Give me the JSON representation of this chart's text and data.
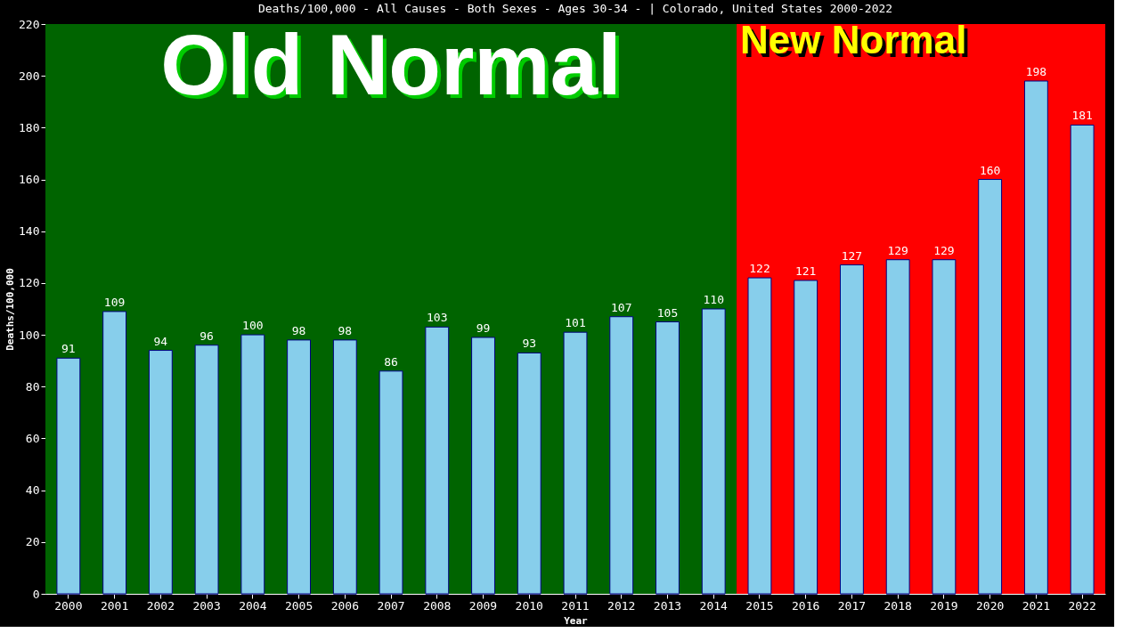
{
  "chart_data": {
    "type": "bar",
    "title": "Deaths/100,000 - All Causes - Both Sexes - Ages 30-34 -  | Colorado, United States 2000-2022",
    "xlabel": "Year",
    "ylabel": "Deaths/100,000",
    "categories": [
      "2000",
      "2001",
      "2002",
      "2003",
      "2004",
      "2005",
      "2006",
      "2007",
      "2008",
      "2009",
      "2010",
      "2011",
      "2012",
      "2013",
      "2014",
      "2015",
      "2016",
      "2017",
      "2018",
      "2019",
      "2020",
      "2021",
      "2022"
    ],
    "values": [
      91,
      109,
      94,
      96,
      100,
      98,
      98,
      86,
      103,
      99,
      93,
      101,
      107,
      105,
      110,
      122,
      121,
      127,
      129,
      129,
      160,
      198,
      181
    ],
    "color": "#87ceeb",
    "ylim": [
      0,
      220
    ],
    "yticks": [
      0,
      20,
      40,
      60,
      80,
      100,
      120,
      140,
      160,
      180,
      200,
      220
    ],
    "bands": [
      {
        "axis": "x",
        "from": "2000",
        "to": "2014",
        "label": "Old Normal",
        "color": "#006400"
      },
      {
        "axis": "x",
        "from": "2015",
        "to": "2022",
        "label": "New Normal",
        "color": "#ff0000"
      }
    ],
    "data_labels": true,
    "grid": false
  }
}
